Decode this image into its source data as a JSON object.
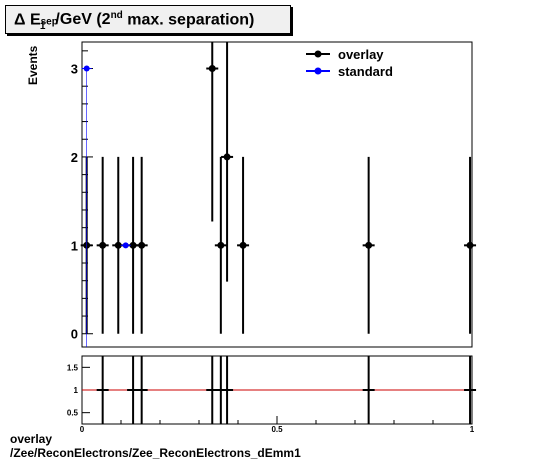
{
  "title": {
    "prefix": "Δ E",
    "sup1": "sep",
    "sub1": "1",
    "middle": "/GeV (2",
    "sup2": "nd",
    "suffix": " max. separation)"
  },
  "footer": {
    "line1": "overlay",
    "line2": "/Zee/ReconElectrons/Zee_ReconElectrons_dEmm1"
  },
  "colors": {
    "overlay": "#000000",
    "standard": "#0000ff",
    "ratio_line": "#cc0000"
  },
  "chart_data": [
    {
      "type": "scatter",
      "ylabel": "Events",
      "xlim": [
        0,
        1
      ],
      "ylim": [
        -0.15,
        3.3
      ],
      "y_ticks": [
        0,
        1,
        2,
        3
      ],
      "legend": {
        "placement": "top-right"
      },
      "series": [
        {
          "name": "overlay",
          "points": [
            {
              "x": 0.012,
              "y": 1,
              "lo": 0,
              "hi": 2
            },
            {
              "x": 0.053,
              "y": 1,
              "lo": 0,
              "hi": 2
            },
            {
              "x": 0.093,
              "y": 1,
              "lo": 0,
              "hi": 2
            },
            {
              "x": 0.131,
              "y": 1,
              "lo": 0,
              "hi": 2
            },
            {
              "x": 0.153,
              "y": 1,
              "lo": 0,
              "hi": 2
            },
            {
              "x": 0.334,
              "y": 3,
              "lo": 1.27,
              "hi": 4.73
            },
            {
              "x": 0.356,
              "y": 1,
              "lo": 0,
              "hi": 2
            },
            {
              "x": 0.372,
              "y": 2,
              "lo": 0.59,
              "hi": 3.41
            },
            {
              "x": 0.413,
              "y": 1,
              "lo": 0,
              "hi": 2
            },
            {
              "x": 0.735,
              "y": 1,
              "lo": 0,
              "hi": 2
            },
            {
              "x": 0.995,
              "y": 1,
              "lo": 0,
              "hi": 2
            }
          ]
        },
        {
          "name": "standard",
          "points": [
            {
              "x": 0.012,
              "y": 3,
              "lo": 3,
              "hi": 3
            },
            {
              "x": 0.112,
              "y": 1,
              "lo": 1,
              "hi": 1
            }
          ]
        }
      ]
    },
    {
      "type": "scatter",
      "xlim": [
        0,
        1
      ],
      "ylim": [
        0.25,
        1.75
      ],
      "y_ticks": [
        0.5,
        1,
        1.5
      ],
      "y_tick_labels": [
        "0.5",
        "1",
        "1.5"
      ],
      "x_ticks": [
        0,
        0.5,
        1
      ],
      "x_tick_labels": [
        "0",
        "0.5",
        "1"
      ],
      "reference_line": 1,
      "ratio_points_x": [
        0.053,
        0.131,
        0.153,
        0.334,
        0.356,
        0.372,
        0.735,
        0.995
      ]
    }
  ]
}
